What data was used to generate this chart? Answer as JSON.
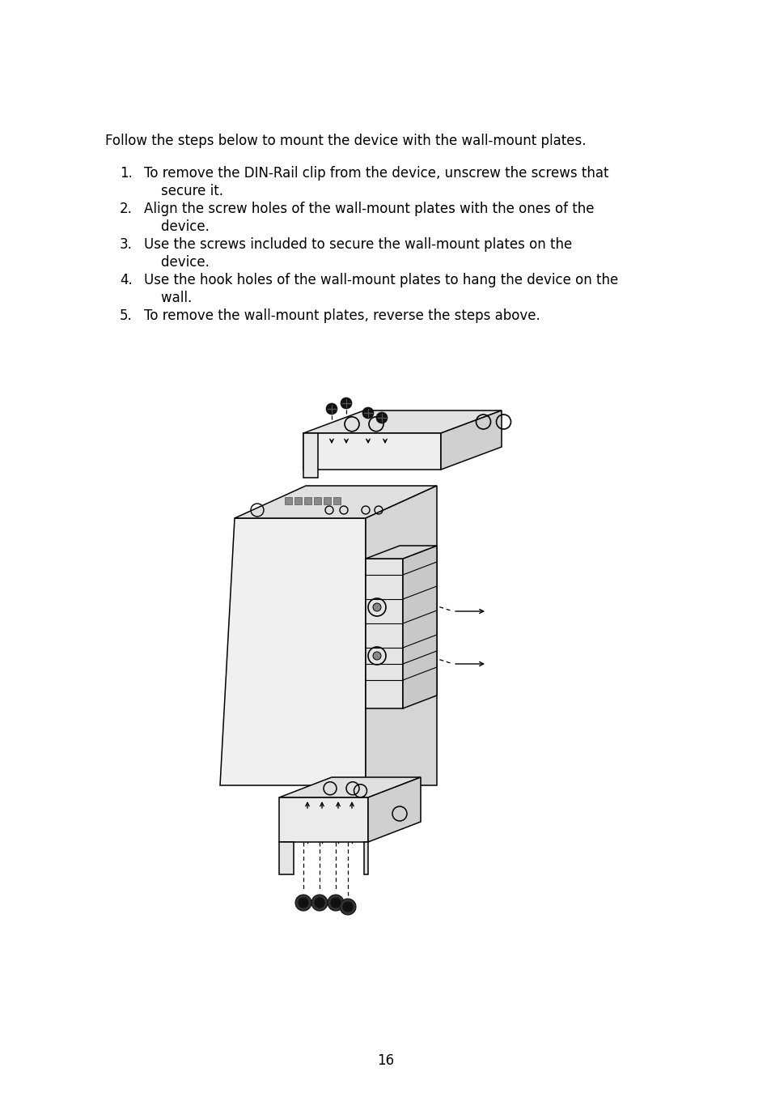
{
  "bg_color": "#ffffff",
  "text_color": "#000000",
  "page_number": "16",
  "intro_text": "Follow the steps below to mount the device with the wall-mount plates.",
  "steps": [
    [
      "1.",
      "To remove the DIN-Rail clip from the device, unscrew the screws that"
    ],
    [
      "",
      "    secure it."
    ],
    [
      "2.",
      "Align the screw holes of the wall-mount plates with the ones of the"
    ],
    [
      "",
      "    device."
    ],
    [
      "3.",
      "Use the screws included to secure the wall-mount plates on the"
    ],
    [
      "",
      "    device."
    ],
    [
      "4.",
      "Use the hook holes of the wall-mount plates to hang the device on the"
    ],
    [
      "",
      "    wall."
    ],
    [
      "5.",
      "To remove the wall-mount plates, reverse the steps above."
    ]
  ],
  "font_size": 12.0,
  "lw": 1.1
}
